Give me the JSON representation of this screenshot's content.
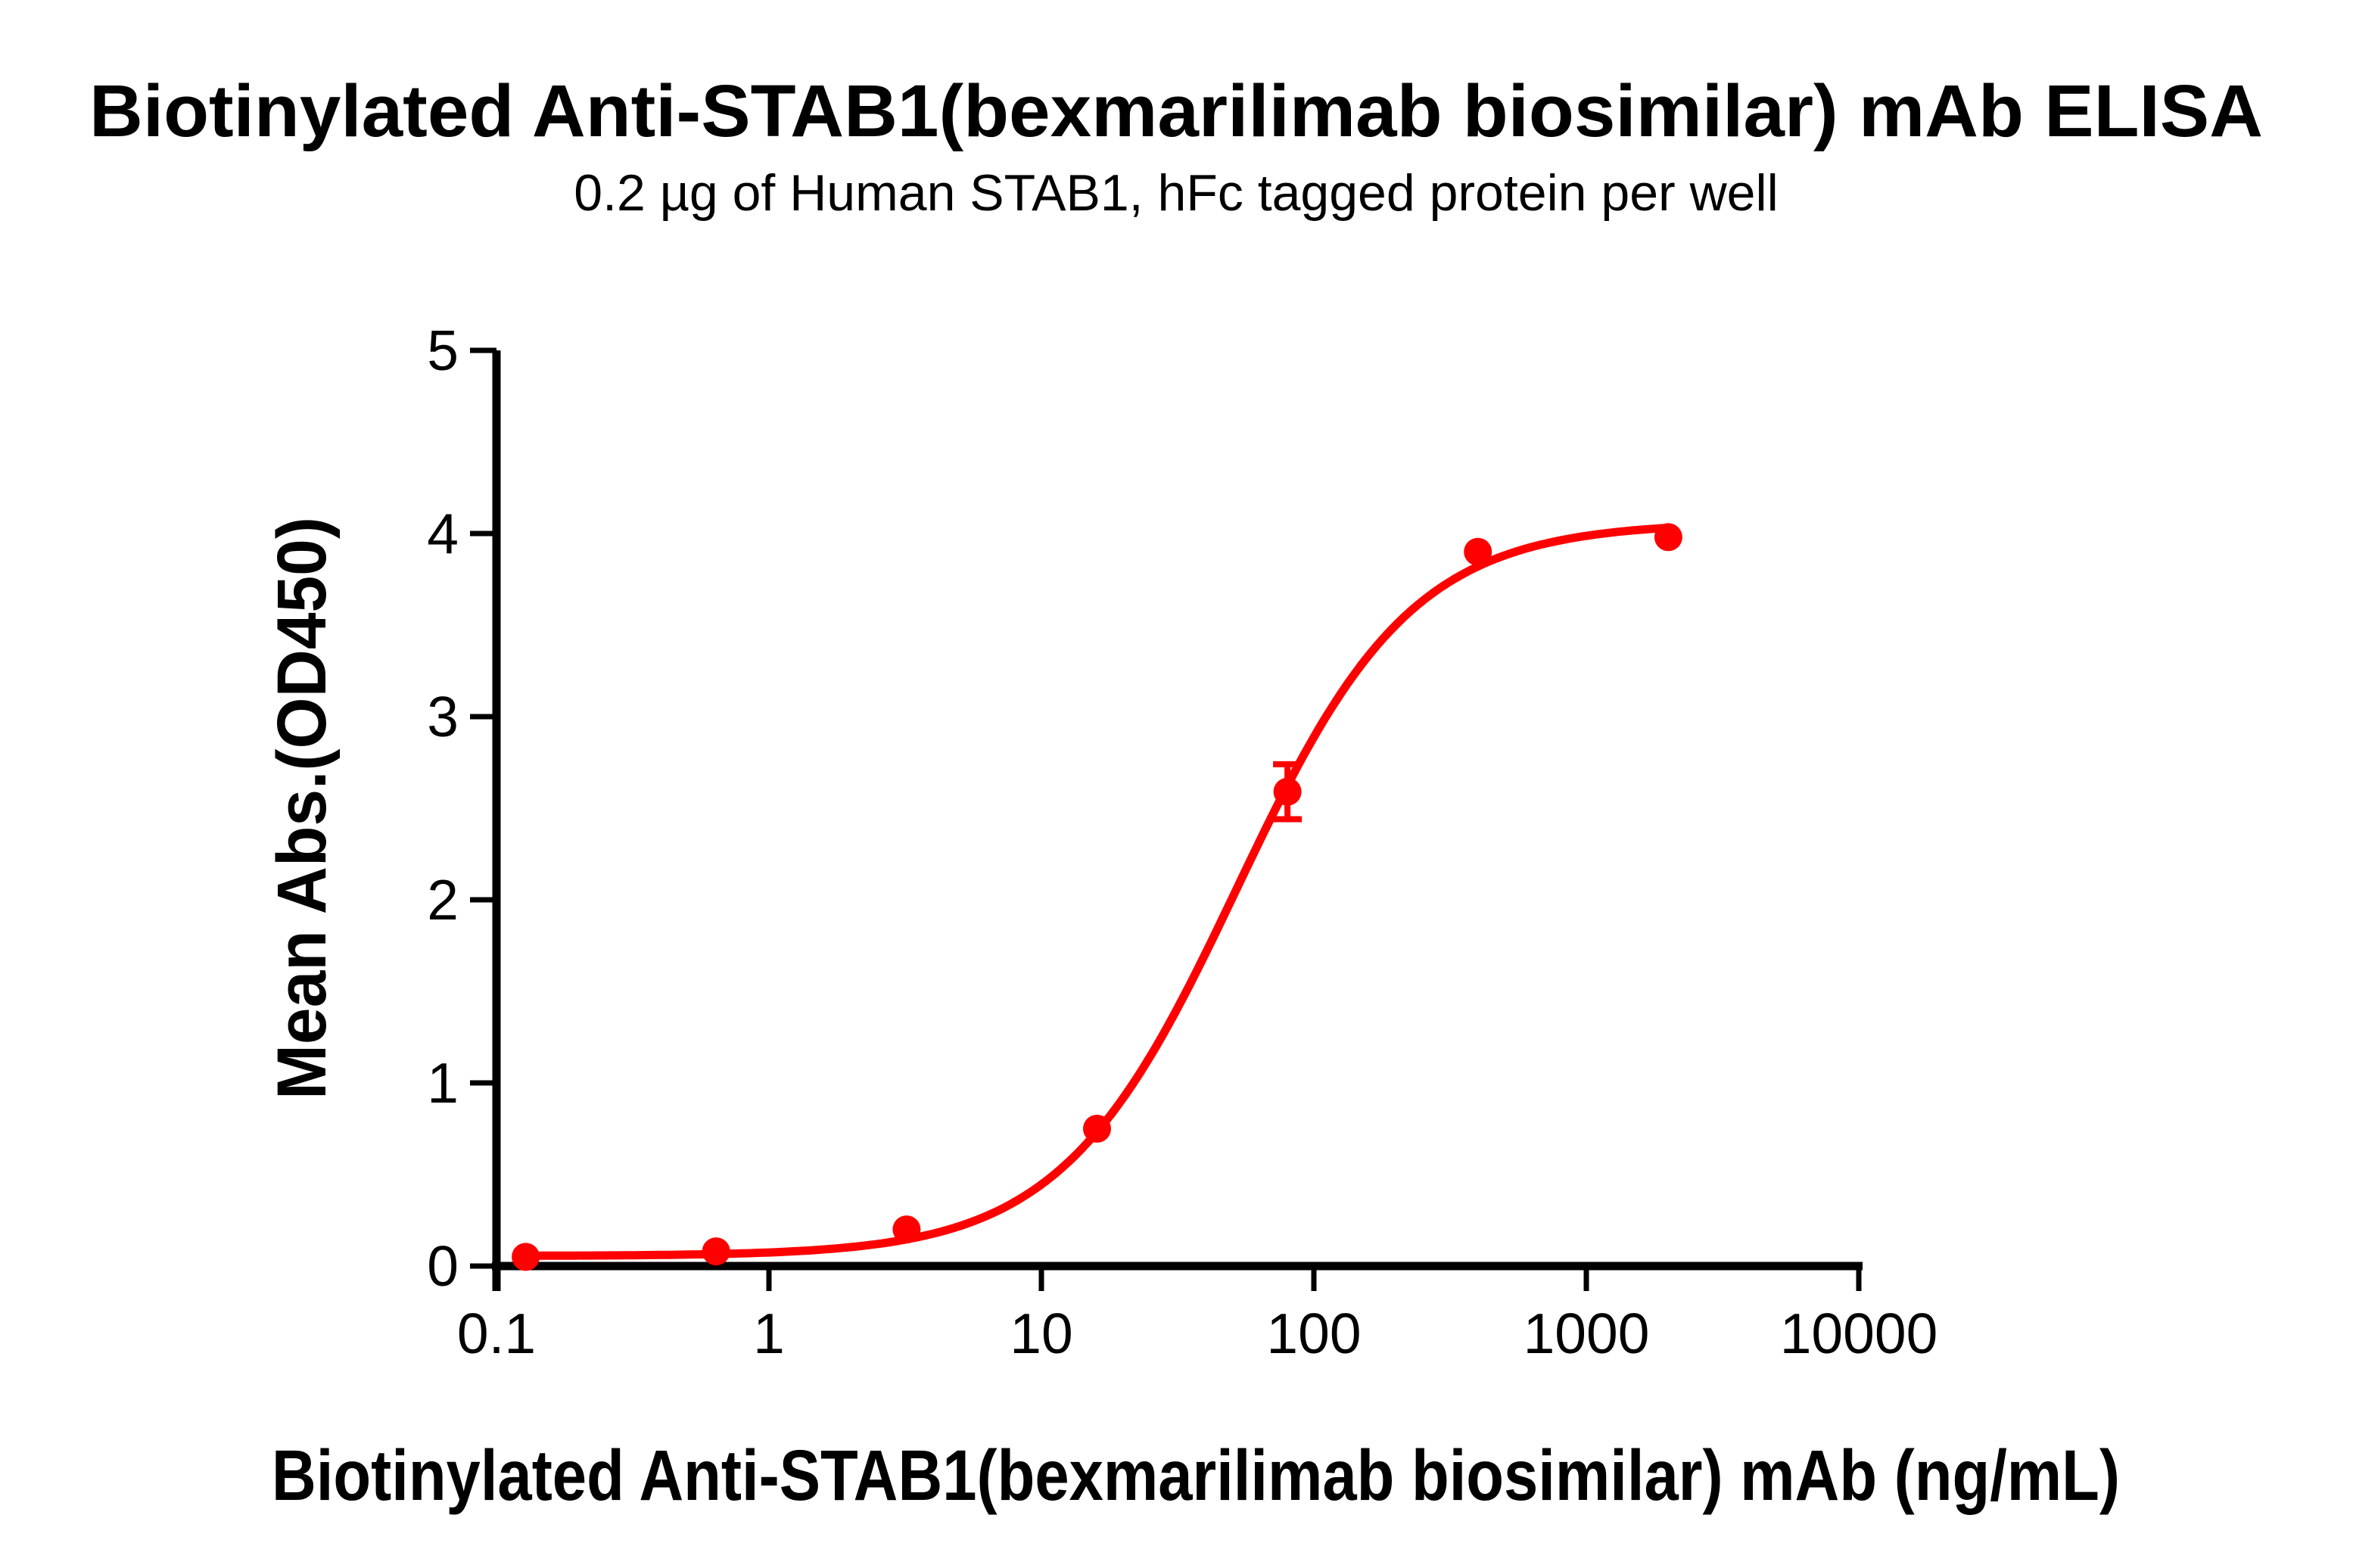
{
  "chart_data": {
    "type": "scatter",
    "title": "Biotinylated Anti-STAB1(bexmarilimab biosimilar) mAb ELISA",
    "subtitle": "0.2 µg of Human STAB1, hFc tagged protein per well",
    "xlabel": "Biotinylated Anti-STAB1(bexmarilimab biosimilar) mAb (ng/mL)",
    "ylabel": "Mean Abs.(OD450)",
    "x_scale": "log10",
    "xlim": [
      0.1,
      10000
    ],
    "ylim": [
      0,
      5
    ],
    "x_tick_values": [
      0.1,
      1,
      10,
      100,
      1000,
      10000
    ],
    "x_tick_labels": [
      "0.1",
      "1",
      "10",
      "100",
      "1000",
      "10000"
    ],
    "y_tick_values": [
      0,
      1,
      2,
      3,
      4,
      5
    ],
    "y_tick_labels": [
      "0",
      "1",
      "2",
      "3",
      "4",
      "5"
    ],
    "grid": false,
    "legend": "none",
    "series": [
      {
        "name": "Biotinylated Anti-STAB1(bexmarilimab biosimilar) mAb",
        "color": "#FF0000",
        "marker": "circle",
        "x": [
          0.128,
          0.64,
          3.2,
          16,
          80,
          400,
          2000
        ],
        "y": [
          0.05,
          0.08,
          0.2,
          0.75,
          2.59,
          3.9,
          3.98
        ],
        "y_error": [
          0,
          0,
          0,
          0,
          0.15,
          0,
          0
        ],
        "fit": {
          "model": "4PL sigmoidal dose-response",
          "bottom": 0.055,
          "top": 4.06,
          "ec50": 52,
          "hill": 1.35,
          "curve_x_range": [
            0.128,
            2000
          ]
        }
      }
    ]
  }
}
